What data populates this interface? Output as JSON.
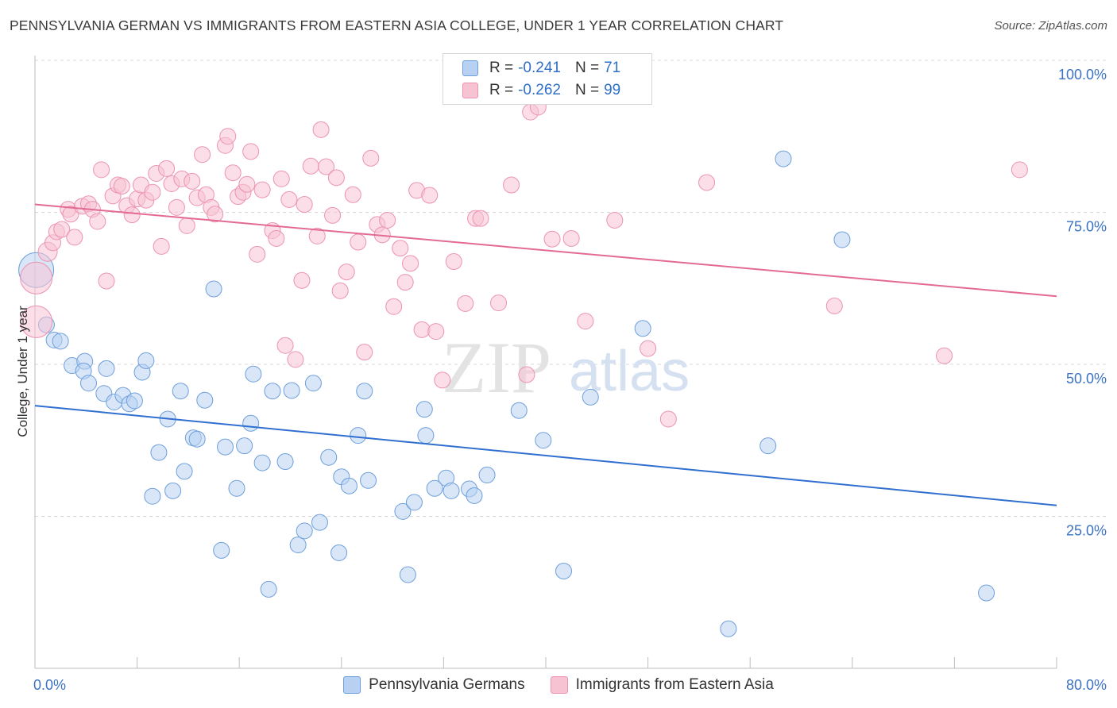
{
  "title": "PENNSYLVANIA GERMAN VS IMMIGRANTS FROM EASTERN ASIA COLLEGE, UNDER 1 YEAR CORRELATION CHART",
  "source": "Source: ZipAtlas.com",
  "watermark": {
    "zip": "ZIP",
    "atlas": "atlas"
  },
  "legend": {
    "series1": {
      "r_label": "R =",
      "r_value": "-0.241",
      "n_label": "N =",
      "n_value": "71"
    },
    "series2": {
      "r_label": "R =",
      "r_value": "-0.262",
      "n_label": "N =",
      "n_value": "99"
    }
  },
  "colors": {
    "blue_fill": "#b8d1f2",
    "blue_stroke": "#6e9fdb",
    "blue_line": "#2f6fd0",
    "pink_fill": "#f7c3d3",
    "pink_stroke": "#ec93b1",
    "pink_line": "#e46a96",
    "tick_label": "#3b72c4",
    "grid": "#d8d8d8"
  },
  "chart_data": {
    "type": "scatter",
    "title": "PENNSYLVANIA GERMAN VS IMMIGRANTS FROM EASTERN ASIA COLLEGE, UNDER 1 YEAR CORRELATION CHART",
    "xlabel": "",
    "ylabel": "College, Under 1 year",
    "xlim": [
      0,
      80
    ],
    "ylim": [
      0,
      102
    ],
    "x_tick_labels": [
      "0.0%",
      "80.0%"
    ],
    "y_tick_labels": [
      "100.0%",
      "75.0%",
      "50.0%",
      "25.0%"
    ],
    "y_ticks": [
      100,
      75,
      50,
      25
    ],
    "grid": true,
    "legend_position": "bottom",
    "series": [
      {
        "name": "Pennsylvania Germans",
        "color": "#6e9fdb",
        "trend": {
          "x": [
            0,
            80
          ],
          "y": [
            43.2,
            26.8
          ]
        },
        "points": [
          [
            0.1,
            65.5,
            22
          ],
          [
            0.9,
            56.5,
            10
          ],
          [
            1.5,
            54.0,
            10
          ],
          [
            2.0,
            53.8,
            10
          ],
          [
            2.9,
            49.8,
            10
          ],
          [
            3.9,
            50.5,
            10
          ],
          [
            3.8,
            48.9,
            10
          ],
          [
            4.2,
            46.9,
            10
          ],
          [
            5.6,
            49.3,
            10
          ],
          [
            5.4,
            45.2,
            10
          ],
          [
            6.2,
            43.8,
            10
          ],
          [
            6.9,
            44.9,
            10
          ],
          [
            7.4,
            43.5,
            10
          ],
          [
            7.8,
            44.0,
            10
          ],
          [
            8.4,
            48.7,
            10
          ],
          [
            8.7,
            50.6,
            10
          ],
          [
            9.2,
            28.3,
            10
          ],
          [
            9.7,
            35.5,
            10
          ],
          [
            10.4,
            41.0,
            10
          ],
          [
            10.8,
            29.2,
            10
          ],
          [
            11.4,
            45.6,
            10
          ],
          [
            11.7,
            32.4,
            10
          ],
          [
            12.4,
            37.9,
            10
          ],
          [
            12.7,
            37.7,
            10
          ],
          [
            13.3,
            44.1,
            10
          ],
          [
            14.0,
            62.4,
            10
          ],
          [
            14.6,
            19.4,
            10
          ],
          [
            14.9,
            36.4,
            10
          ],
          [
            15.8,
            29.6,
            10
          ],
          [
            16.4,
            36.6,
            10
          ],
          [
            16.9,
            40.3,
            10
          ],
          [
            17.1,
            48.4,
            10
          ],
          [
            17.8,
            33.8,
            10
          ],
          [
            18.3,
            13.0,
            10
          ],
          [
            18.6,
            45.6,
            10
          ],
          [
            19.6,
            34.0,
            10
          ],
          [
            20.1,
            45.7,
            10
          ],
          [
            20.6,
            20.3,
            10
          ],
          [
            21.1,
            22.6,
            10
          ],
          [
            21.8,
            46.9,
            10
          ],
          [
            22.3,
            24.0,
            10
          ],
          [
            23.0,
            34.7,
            10
          ],
          [
            23.8,
            19.0,
            10
          ],
          [
            24.0,
            31.5,
            10
          ],
          [
            24.6,
            30.0,
            10
          ],
          [
            25.3,
            38.3,
            10
          ],
          [
            25.8,
            45.6,
            10
          ],
          [
            26.1,
            30.9,
            10
          ],
          [
            28.8,
            25.8,
            10
          ],
          [
            29.2,
            15.4,
            10
          ],
          [
            29.7,
            27.3,
            10
          ],
          [
            30.5,
            42.6,
            10
          ],
          [
            30.6,
            38.3,
            10
          ],
          [
            31.3,
            29.6,
            10
          ],
          [
            32.2,
            31.3,
            10
          ],
          [
            32.6,
            29.2,
            10
          ],
          [
            34.0,
            29.5,
            10
          ],
          [
            34.4,
            28.4,
            10
          ],
          [
            35.4,
            31.8,
            10
          ],
          [
            37.9,
            42.4,
            10
          ],
          [
            39.8,
            37.5,
            10
          ],
          [
            41.4,
            16.0,
            10
          ],
          [
            43.5,
            44.6,
            10
          ],
          [
            47.6,
            55.9,
            10
          ],
          [
            54.3,
            6.5,
            10
          ],
          [
            57.4,
            36.6,
            10
          ],
          [
            58.6,
            83.8,
            10
          ],
          [
            63.2,
            70.5,
            10
          ],
          [
            74.5,
            12.4,
            10
          ]
        ]
      },
      {
        "name": "Immigrants from Eastern Asia",
        "color": "#ec93b1",
        "trend": {
          "x": [
            0,
            80
          ],
          "y": [
            76.3,
            61.2
          ]
        },
        "points": [
          [
            0.1,
            64.2,
            20
          ],
          [
            0.1,
            57.0,
            20
          ],
          [
            1.0,
            68.5,
            12
          ],
          [
            1.4,
            70.0,
            10
          ],
          [
            1.7,
            71.8,
            10
          ],
          [
            2.1,
            72.2,
            10
          ],
          [
            2.6,
            75.5,
            10
          ],
          [
            2.8,
            74.7,
            10
          ],
          [
            3.1,
            70.9,
            10
          ],
          [
            3.7,
            76.0,
            10
          ],
          [
            4.2,
            76.4,
            10
          ],
          [
            4.5,
            75.5,
            10
          ],
          [
            4.9,
            73.5,
            10
          ],
          [
            5.2,
            82.0,
            10
          ],
          [
            5.6,
            63.7,
            10
          ],
          [
            6.1,
            77.7,
            10
          ],
          [
            6.5,
            79.5,
            10
          ],
          [
            6.8,
            79.3,
            10
          ],
          [
            7.2,
            76.1,
            10
          ],
          [
            7.6,
            74.6,
            10
          ],
          [
            8.0,
            77.2,
            10
          ],
          [
            8.3,
            79.5,
            10
          ],
          [
            8.7,
            77.0,
            10
          ],
          [
            9.2,
            78.3,
            10
          ],
          [
            9.5,
            81.4,
            10
          ],
          [
            9.9,
            69.4,
            10
          ],
          [
            10.3,
            82.2,
            10
          ],
          [
            10.7,
            79.7,
            10
          ],
          [
            11.1,
            75.8,
            10
          ],
          [
            11.5,
            80.5,
            10
          ],
          [
            11.9,
            72.8,
            10
          ],
          [
            12.3,
            80.1,
            10
          ],
          [
            12.7,
            77.4,
            10
          ],
          [
            13.1,
            84.5,
            10
          ],
          [
            13.4,
            77.9,
            10
          ],
          [
            13.8,
            75.8,
            10
          ],
          [
            14.1,
            74.7,
            10
          ],
          [
            14.9,
            86.0,
            10
          ],
          [
            15.1,
            87.5,
            10
          ],
          [
            15.5,
            81.5,
            10
          ],
          [
            15.9,
            77.6,
            10
          ],
          [
            16.3,
            78.3,
            10
          ],
          [
            16.6,
            79.6,
            10
          ],
          [
            16.9,
            85.0,
            10
          ],
          [
            17.4,
            68.1,
            10
          ],
          [
            17.8,
            78.7,
            10
          ],
          [
            18.6,
            72.0,
            10
          ],
          [
            18.9,
            70.7,
            10
          ],
          [
            19.3,
            80.5,
            10
          ],
          [
            19.6,
            53.1,
            10
          ],
          [
            19.9,
            77.1,
            10
          ],
          [
            20.4,
            50.8,
            10
          ],
          [
            20.9,
            63.8,
            10
          ],
          [
            21.1,
            76.3,
            10
          ],
          [
            21.6,
            82.6,
            10
          ],
          [
            22.1,
            71.1,
            10
          ],
          [
            22.4,
            88.6,
            10
          ],
          [
            22.8,
            82.5,
            10
          ],
          [
            23.3,
            74.5,
            10
          ],
          [
            23.6,
            80.7,
            10
          ],
          [
            23.9,
            62.1,
            10
          ],
          [
            24.4,
            65.2,
            10
          ],
          [
            24.9,
            77.9,
            10
          ],
          [
            25.3,
            70.1,
            10
          ],
          [
            25.8,
            52.0,
            10
          ],
          [
            26.3,
            83.9,
            10
          ],
          [
            26.8,
            73.0,
            10
          ],
          [
            27.2,
            71.3,
            10
          ],
          [
            27.6,
            73.7,
            10
          ],
          [
            28.1,
            59.5,
            10
          ],
          [
            28.6,
            69.1,
            10
          ],
          [
            29.0,
            63.5,
            10
          ],
          [
            29.4,
            66.6,
            10
          ],
          [
            29.9,
            78.6,
            10
          ],
          [
            30.3,
            55.7,
            10
          ],
          [
            30.9,
            77.8,
            10
          ],
          [
            31.4,
            55.4,
            10
          ],
          [
            31.9,
            47.4,
            10
          ],
          [
            32.8,
            66.9,
            10
          ],
          [
            33.7,
            60.0,
            10
          ],
          [
            34.5,
            74.0,
            10
          ],
          [
            34.9,
            74.0,
            10
          ],
          [
            36.3,
            60.1,
            10
          ],
          [
            37.3,
            79.5,
            10
          ],
          [
            38.5,
            48.3,
            10
          ],
          [
            38.8,
            91.5,
            10
          ],
          [
            39.4,
            92.3,
            10
          ],
          [
            40.5,
            70.6,
            10
          ],
          [
            42.0,
            70.7,
            10
          ],
          [
            43.1,
            57.1,
            10
          ],
          [
            45.4,
            73.7,
            10
          ],
          [
            48.0,
            52.6,
            10
          ],
          [
            49.6,
            41.0,
            10
          ],
          [
            52.6,
            79.9,
            10
          ],
          [
            62.6,
            59.6,
            10
          ],
          [
            71.2,
            51.4,
            10
          ],
          [
            77.1,
            82.0,
            10
          ]
        ]
      }
    ]
  },
  "bottom_legend": [
    "Pennsylvania Germans",
    "Immigrants from Eastern Asia"
  ]
}
